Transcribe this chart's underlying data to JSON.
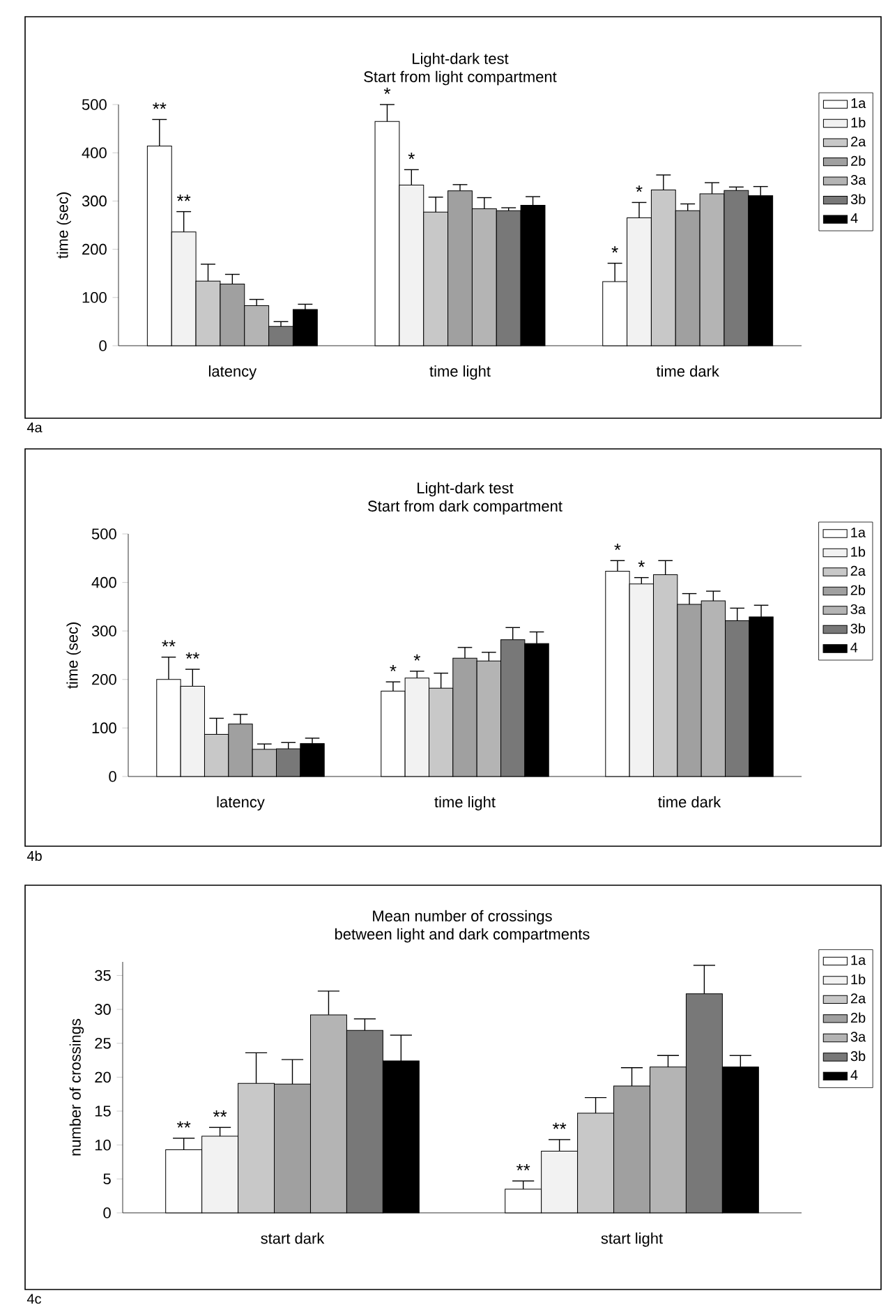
{
  "chart_data": [
    {
      "type": "bar",
      "title": "Light-dark test",
      "subtitle": "Start from light compartment",
      "ylabel": "time (sec)",
      "categories": [
        "latency",
        "time light",
        "time dark"
      ],
      "ylim": [
        0,
        500
      ],
      "yticks": [
        0,
        100,
        200,
        300,
        400,
        500
      ],
      "legend": "right",
      "series": [
        {
          "name": "1a",
          "color": "#ffffff",
          "values": [
            414,
            465,
            133
          ],
          "errors": [
            [
              414,
              469
            ],
            [
              465,
              500
            ],
            [
              133,
              171
            ]
          ]
        },
        {
          "name": "1b",
          "color": "#f2f2f2",
          "values": [
            236,
            333,
            265
          ],
          "errors": [
            [
              236,
              278
            ],
            [
              333,
              365
            ],
            [
              265,
              297
            ]
          ]
        },
        {
          "name": "2a",
          "color": "#c8c8c8",
          "values": [
            134,
            277,
            323
          ],
          "errors": [
            [
              134,
              169
            ],
            [
              277,
              308
            ],
            [
              323,
              354
            ]
          ]
        },
        {
          "name": "2b",
          "color": "#a0a0a0",
          "values": [
            128,
            321,
            280
          ],
          "errors": [
            [
              128,
              148
            ],
            [
              321,
              334
            ],
            [
              280,
              294
            ]
          ]
        },
        {
          "name": "3a",
          "color": "#b4b4b4",
          "values": [
            83,
            284,
            315
          ],
          "errors": [
            [
              83,
              96
            ],
            [
              284,
              307
            ],
            [
              315,
              338
            ]
          ]
        },
        {
          "name": "3b",
          "color": "#787878",
          "values": [
            40,
            280,
            322
          ],
          "errors": [
            [
              40,
              50
            ],
            [
              280,
              286
            ],
            [
              322,
              329
            ]
          ]
        },
        {
          "name": "4",
          "color": "#000000",
          "values": [
            75,
            291,
            311
          ],
          "errors": [
            [
              75,
              86
            ],
            [
              291,
              309
            ],
            [
              311,
              330
            ]
          ]
        }
      ],
      "annotations": [
        "**",
        "**",
        "*",
        "*",
        "*",
        "*",
        "4a"
      ]
    },
    {
      "type": "bar",
      "title": "Light-dark test",
      "subtitle": "Start from dark compartment",
      "ylabel": "time (sec)",
      "categories": [
        "latency",
        "time light",
        "time dark"
      ],
      "ylim": [
        0,
        500
      ],
      "yticks": [
        0,
        100,
        200,
        300,
        400,
        500
      ],
      "legend": "right",
      "series": [
        {
          "name": "1a",
          "color": "#ffffff",
          "values": [
            200,
            176,
            423
          ],
          "errors": [
            [
              200,
              246
            ],
            [
              176,
              195
            ],
            [
              423,
              445
            ]
          ]
        },
        {
          "name": "1b",
          "color": "#f2f2f2",
          "values": [
            186,
            203,
            397
          ],
          "errors": [
            [
              186,
              221
            ],
            [
              203,
              217
            ],
            [
              397,
              410
            ]
          ]
        },
        {
          "name": "2a",
          "color": "#c8c8c8",
          "values": [
            87,
            182,
            416
          ],
          "errors": [
            [
              87,
              120
            ],
            [
              182,
              213
            ],
            [
              416,
              445
            ]
          ]
        },
        {
          "name": "2b",
          "color": "#a0a0a0",
          "values": [
            108,
            244,
            355
          ],
          "errors": [
            [
              108,
              128
            ],
            [
              244,
              266
            ],
            [
              355,
              377
            ]
          ]
        },
        {
          "name": "3a",
          "color": "#b4b4b4",
          "values": [
            56,
            238,
            362
          ],
          "errors": [
            [
              56,
              67
            ],
            [
              238,
              256
            ],
            [
              362,
              382
            ]
          ]
        },
        {
          "name": "3b",
          "color": "#787878",
          "values": [
            57,
            282,
            321
          ],
          "errors": [
            [
              57,
              70
            ],
            [
              282,
              307
            ],
            [
              321,
              347
            ]
          ]
        },
        {
          "name": "4",
          "color": "#000000",
          "values": [
            68,
            274,
            329
          ],
          "errors": [
            [
              68,
              79
            ],
            [
              274,
              298
            ],
            [
              329,
              353
            ]
          ]
        }
      ],
      "annotations": [
        "**",
        "**",
        "*",
        "*",
        "*",
        "*",
        "4b"
      ]
    },
    {
      "type": "bar",
      "title": "Mean number of crossings",
      "subtitle": "between light and dark compartments",
      "ylabel": "number of crossings",
      "categories": [
        "start dark",
        "start light"
      ],
      "ylim": [
        0,
        37
      ],
      "yticks": [
        0,
        5,
        10,
        15,
        20,
        25,
        30,
        35
      ],
      "legend": "right",
      "series": [
        {
          "name": "1a",
          "color": "#ffffff",
          "values": [
            9.3,
            3.5
          ],
          "errors": [
            [
              9.3,
              11.0
            ],
            [
              3.5,
              4.7
            ]
          ]
        },
        {
          "name": "1b",
          "color": "#f2f2f2",
          "values": [
            11.3,
            9.1
          ],
          "errors": [
            [
              11.3,
              12.6
            ],
            [
              9.1,
              10.8
            ]
          ]
        },
        {
          "name": "2a",
          "color": "#c8c8c8",
          "values": [
            19.1,
            14.7
          ],
          "errors": [
            [
              19.1,
              23.6
            ],
            [
              14.7,
              17.0
            ]
          ]
        },
        {
          "name": "2b",
          "color": "#a0a0a0",
          "values": [
            19.0,
            18.7
          ],
          "errors": [
            [
              19.0,
              22.6
            ],
            [
              18.7,
              21.4
            ]
          ]
        },
        {
          "name": "3a",
          "color": "#b4b4b4",
          "values": [
            29.2,
            21.5
          ],
          "errors": [
            [
              29.2,
              32.7
            ],
            [
              21.5,
              23.2
            ]
          ]
        },
        {
          "name": "3b",
          "color": "#787878",
          "values": [
            26.9,
            32.3
          ],
          "errors": [
            [
              26.9,
              28.6
            ],
            [
              32.3,
              36.5
            ]
          ]
        },
        {
          "name": "4",
          "color": "#000000",
          "values": [
            22.4,
            21.5
          ],
          "errors": [
            [
              22.4,
              26.2
            ],
            [
              21.5,
              23.2
            ]
          ]
        }
      ],
      "annotations": [
        "**",
        "**",
        "**",
        "**",
        "4c"
      ]
    }
  ]
}
